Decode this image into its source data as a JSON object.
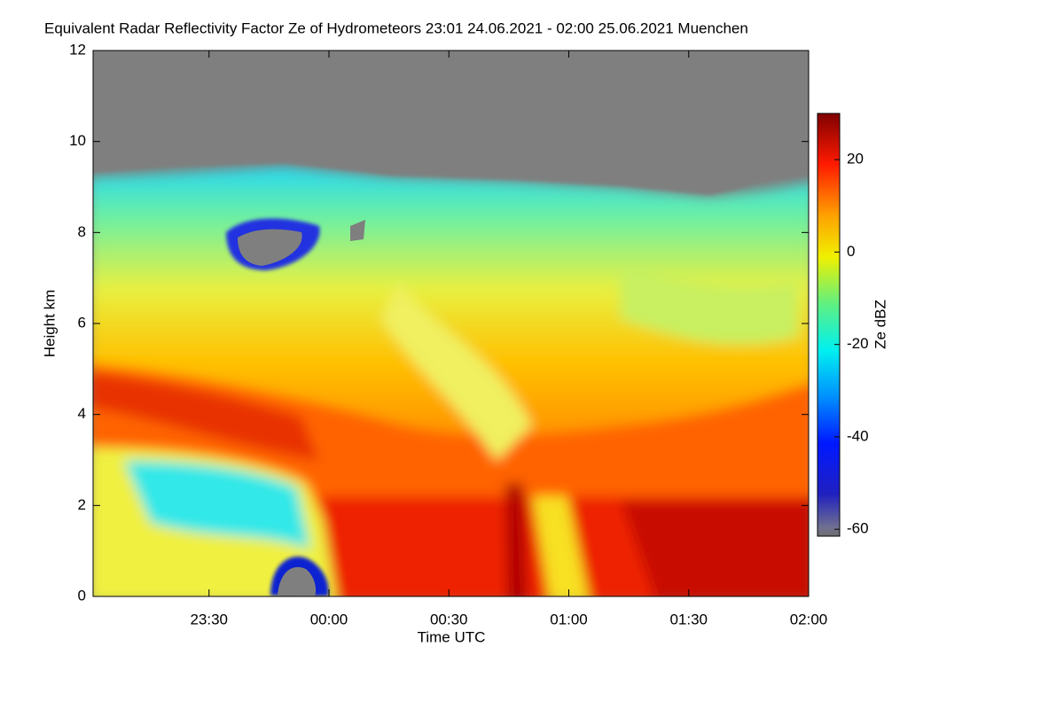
{
  "chart_data": {
    "type": "heatmap",
    "title": "Equivalent Radar Reflectivity Factor Ze of Hydrometeors   23:01 24.06.2021 - 02:00 25.06.2021 Muenchen",
    "x_label": "Time UTC",
    "y_label": "Height km",
    "xlim": [
      "23:01",
      "02:00"
    ],
    "xticks": [
      "23:30",
      "00:00",
      "00:30",
      "01:00",
      "01:30",
      "02:00"
    ],
    "ylim": [
      0,
      12
    ],
    "yticks": [
      0,
      2,
      4,
      6,
      8,
      10,
      12
    ],
    "colorbar": {
      "label": "Ze dBZ",
      "lim": [
        -61.5,
        30
      ],
      "ticks": [
        -60,
        -40,
        -20,
        0,
        20
      ]
    }
  }
}
